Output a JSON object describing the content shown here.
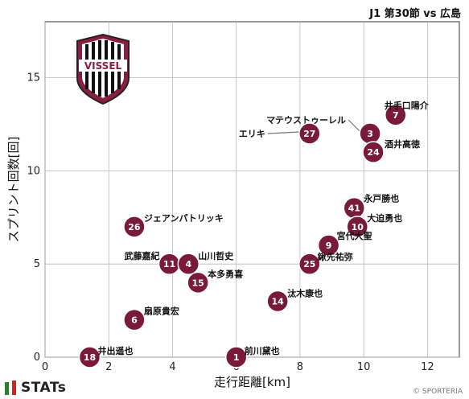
{
  "header": {
    "match": "J1 第30節 vs 広島"
  },
  "footer": {
    "brand": "STATs",
    "copyright": "© SPORTERIA"
  },
  "logo": {
    "text": "VISSEL",
    "color": "#8b1e3f"
  },
  "colors": {
    "point": "#7a1a3a",
    "point_stroke": "#ffffff",
    "grid": "#bbbbbb"
  },
  "chart_data": {
    "type": "scatter",
    "xlabel": "走行距離[km]",
    "ylabel": "スプリント回数[回]",
    "xlim": [
      0,
      13
    ],
    "ylim": [
      0,
      18
    ],
    "xticks": [
      0,
      2,
      4,
      6,
      8,
      10,
      12
    ],
    "yticks": [
      0,
      5,
      10,
      15
    ],
    "grid": true,
    "points": [
      {
        "number": "3",
        "name": "マテウストゥーレル",
        "x": 10.2,
        "y": 12.0
      },
      {
        "number": "7",
        "name": "井手口陽介",
        "x": 11.0,
        "y": 13.0
      },
      {
        "number": "24",
        "name": "酒井高徳",
        "x": 10.3,
        "y": 11.0
      },
      {
        "number": "27",
        "name": "エリキ",
        "x": 8.3,
        "y": 12.0
      },
      {
        "number": "41",
        "name": "永戸勝也",
        "x": 9.7,
        "y": 8.0
      },
      {
        "number": "10",
        "name": "大迫勇也",
        "x": 9.8,
        "y": 7.0
      },
      {
        "number": "9",
        "name": "宮代大聖",
        "x": 8.9,
        "y": 6.0
      },
      {
        "number": "25",
        "name": "鍬先祐弥",
        "x": 8.3,
        "y": 5.0
      },
      {
        "number": "26",
        "name": "ジェアンパトリッキ",
        "x": 2.8,
        "y": 7.0
      },
      {
        "number": "11",
        "name": "武藤嘉紀",
        "x": 3.9,
        "y": 5.0
      },
      {
        "number": "4",
        "name": "山川哲史",
        "x": 4.5,
        "y": 5.0
      },
      {
        "number": "15",
        "name": "本多勇喜",
        "x": 4.8,
        "y": 4.0
      },
      {
        "number": "14",
        "name": "汰木康也",
        "x": 7.3,
        "y": 3.0
      },
      {
        "number": "6",
        "name": "扇原貴宏",
        "x": 2.8,
        "y": 2.0
      },
      {
        "number": "18",
        "name": "井出遥也",
        "x": 1.4,
        "y": 0.0
      },
      {
        "number": "1",
        "name": "前川黛也",
        "x": 6.0,
        "y": 0.0
      }
    ]
  }
}
